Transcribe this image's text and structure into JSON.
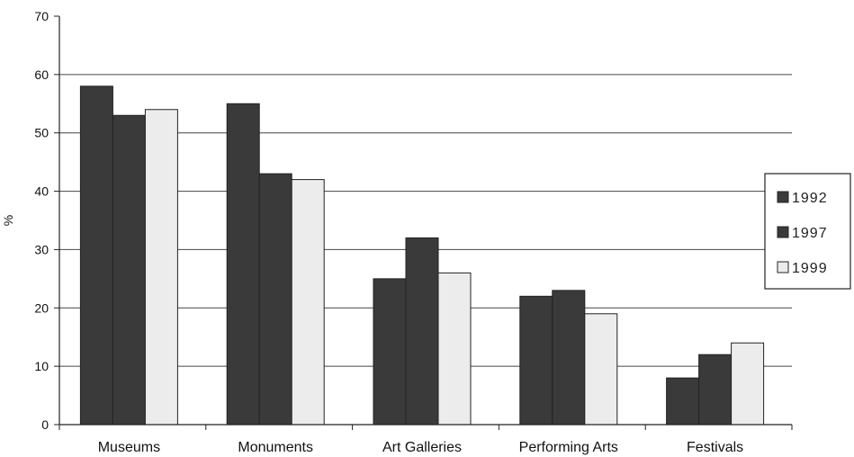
{
  "chart_data": {
    "type": "bar",
    "title": "",
    "xlabel": "",
    "ylabel": "%",
    "categories": [
      "Museums",
      "Monuments",
      "Art Galleries",
      "Performing Arts",
      "Festivals"
    ],
    "series": [
      {
        "name": "1992",
        "values": [
          58,
          55,
          25,
          22,
          8
        ],
        "color": "#3a3a3a"
      },
      {
        "name": "1997",
        "values": [
          53,
          43,
          32,
          23,
          12
        ],
        "color": "#3a3a3a"
      },
      {
        "name": "1999",
        "values": [
          54,
          42,
          26,
          19,
          14
        ],
        "color": "#ececec"
      }
    ],
    "ylim": [
      0,
      70
    ],
    "yticks": [
      0,
      10,
      20,
      30,
      40,
      50,
      60,
      70
    ],
    "grid": true,
    "legend_position": "right"
  }
}
